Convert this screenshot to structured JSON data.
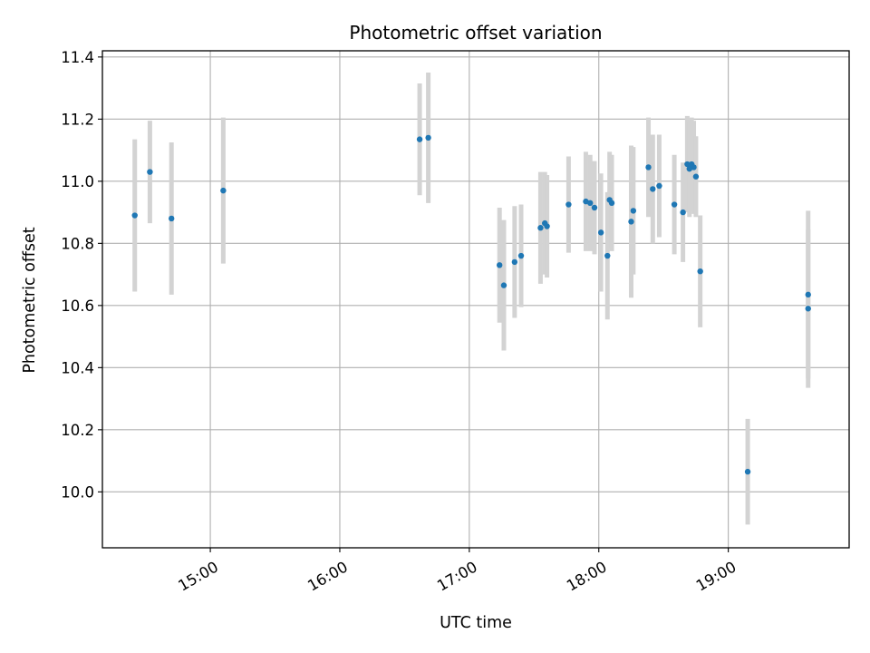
{
  "chart_data": {
    "type": "scatter",
    "title": "Photometric offset variation",
    "xlabel": "UTC time",
    "ylabel": "Photometric offset",
    "x_axis_type": "time",
    "x_ticks": [
      "15:00",
      "16:00",
      "17:00",
      "18:00",
      "19:00"
    ],
    "xlim": [
      "14:10",
      "19:56"
    ],
    "ylim": [
      9.82,
      11.42
    ],
    "y_ticks": [
      "10.0",
      "10.2",
      "10.4",
      "10.6",
      "10.8",
      "11.0",
      "11.2",
      "11.4"
    ],
    "grid": true,
    "colors": {
      "point": "#1f77b4",
      "error_bar": "#d3d3d3",
      "grid": "#b0b0b0"
    },
    "points": [
      {
        "x": "14:25",
        "y": 10.89,
        "err": 0.245
      },
      {
        "x": "14:32",
        "y": 11.03,
        "err": 0.165
      },
      {
        "x": "14:42",
        "y": 10.88,
        "err": 0.245
      },
      {
        "x": "15:06",
        "y": 10.97,
        "err": 0.235
      },
      {
        "x": "16:37",
        "y": 11.135,
        "err": 0.18
      },
      {
        "x": "16:41",
        "y": 11.14,
        "err": 0.21
      },
      {
        "x": "17:14",
        "y": 10.73,
        "err": 0.185
      },
      {
        "x": "17:16",
        "y": 10.665,
        "err": 0.21
      },
      {
        "x": "17:21",
        "y": 10.74,
        "err": 0.18
      },
      {
        "x": "17:24",
        "y": 10.76,
        "err": 0.165
      },
      {
        "x": "17:33",
        "y": 10.85,
        "err": 0.18
      },
      {
        "x": "17:35",
        "y": 10.865,
        "err": 0.165
      },
      {
        "x": "17:36",
        "y": 10.855,
        "err": 0.165
      },
      {
        "x": "17:46",
        "y": 10.925,
        "err": 0.155
      },
      {
        "x": "17:54",
        "y": 10.935,
        "err": 0.16
      },
      {
        "x": "17:56",
        "y": 10.93,
        "err": 0.155
      },
      {
        "x": "17:58",
        "y": 10.915,
        "err": 0.15
      },
      {
        "x": "18:01",
        "y": 10.835,
        "err": 0.19
      },
      {
        "x": "18:04",
        "y": 10.76,
        "err": 0.205
      },
      {
        "x": "18:05",
        "y": 10.94,
        "err": 0.155
      },
      {
        "x": "18:06",
        "y": 10.93,
        "err": 0.155
      },
      {
        "x": "18:15",
        "y": 10.87,
        "err": 0.245
      },
      {
        "x": "18:16",
        "y": 10.905,
        "err": 0.205
      },
      {
        "x": "18:23",
        "y": 11.045,
        "err": 0.16
      },
      {
        "x": "18:25",
        "y": 10.975,
        "err": 0.175
      },
      {
        "x": "18:28",
        "y": 10.985,
        "err": 0.165
      },
      {
        "x": "18:35",
        "y": 10.925,
        "err": 0.16
      },
      {
        "x": "18:39",
        "y": 10.9,
        "err": 0.16
      },
      {
        "x": "18:41",
        "y": 11.055,
        "err": 0.155
      },
      {
        "x": "18:42",
        "y": 11.04,
        "err": 0.155
      },
      {
        "x": "18:43",
        "y": 11.055,
        "err": 0.15
      },
      {
        "x": "18:44",
        "y": 11.045,
        "err": 0.15
      },
      {
        "x": "18:45",
        "y": 11.015,
        "err": 0.13
      },
      {
        "x": "18:47",
        "y": 10.71,
        "err": 0.18
      },
      {
        "x": "19:09",
        "y": 10.065,
        "err": 0.17
      },
      {
        "x": "19:37",
        "y": 10.635,
        "err": 0.27
      },
      {
        "x": "19:37",
        "y": 10.59,
        "err": 0.255
      }
    ]
  }
}
